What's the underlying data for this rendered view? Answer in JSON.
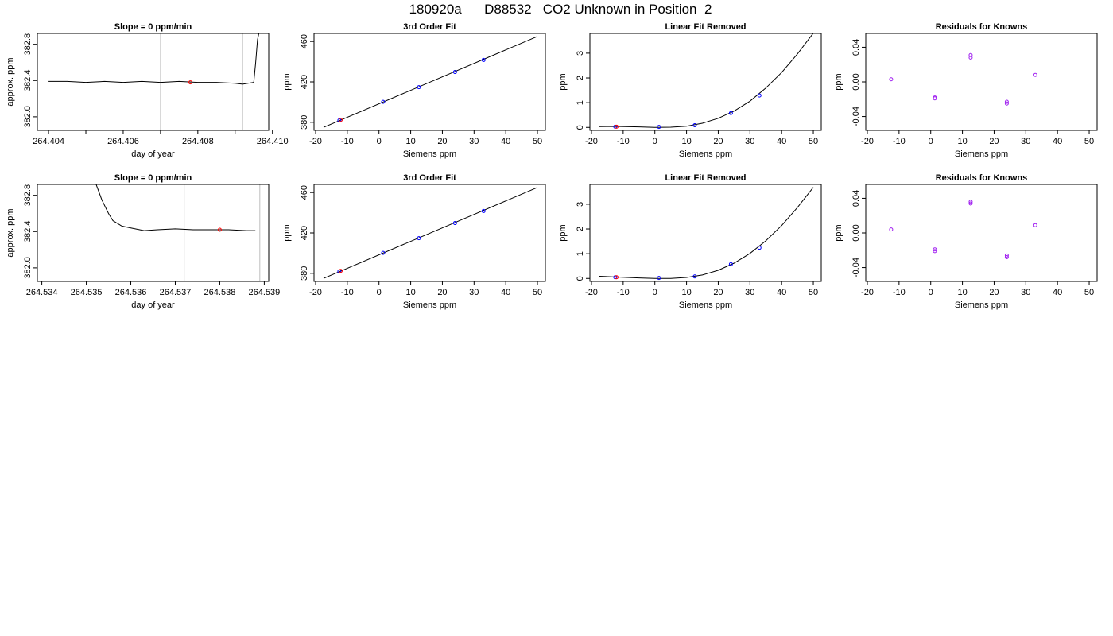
{
  "page": {
    "title": "180920a      D88532   CO2 Unknown in Position  2"
  },
  "colors": {
    "trace": "#000000",
    "guide": "#bebebe",
    "point_known": "#0000ff",
    "point_unknown": "#ff0000",
    "residual": "#a020f0"
  },
  "chart_data": [
    {
      "id": "r1-time",
      "type": "line",
      "title": "Slope =  0  ppm/min",
      "xlabel": "day of year",
      "ylabel": "approx. ppm",
      "xlim": [
        264.4037,
        264.4099
      ],
      "ylim": [
        381.85,
        382.92
      ],
      "xticks": [
        264.404,
        264.406,
        264.408,
        264.41
      ],
      "xtick_labels": [
        "264.404",
        "264.406",
        "264.408",
        "264.410"
      ],
      "xminor_ticks": [
        264.405,
        264.407,
        264.409
      ],
      "yticks": [
        382.0,
        382.4,
        382.8
      ],
      "ytick_labels": [
        "382.0",
        "382.4",
        "382.8"
      ],
      "vlines": [
        264.407,
        264.4092
      ],
      "series": [
        {
          "x": [
            264.404,
            264.4045,
            264.405,
            264.4055,
            264.406,
            264.4065,
            264.407,
            264.4075,
            264.408,
            264.4085,
            264.409,
            264.4092,
            264.4095,
            264.40955,
            264.4096,
            264.40965
          ],
          "y": [
            382.39,
            382.39,
            382.38,
            382.39,
            382.38,
            382.39,
            382.38,
            382.39,
            382.38,
            382.38,
            382.37,
            382.36,
            382.38,
            382.6,
            382.85,
            382.95
          ]
        }
      ],
      "points": [
        {
          "x": 264.4078,
          "y": 382.38,
          "color": "#ff0000"
        }
      ]
    },
    {
      "id": "r1-fit",
      "type": "line",
      "title": "3rd Order Fit",
      "xlabel": "Siemens ppm",
      "ylabel": "ppm",
      "xlim": [
        -20.5,
        52.5
      ],
      "ylim": [
        372,
        468
      ],
      "xticks": [
        -20,
        -10,
        0,
        10,
        20,
        30,
        40,
        50
      ],
      "xtick_labels": [
        "-20",
        "-10",
        "0",
        "10",
        "20",
        "30",
        "40",
        "50"
      ],
      "yticks": [
        380,
        420,
        460
      ],
      "ytick_labels": [
        "380",
        "420",
        "460"
      ],
      "series": [
        {
          "x": [
            -17.5,
            50
          ],
          "y": [
            375,
            465
          ]
        }
      ],
      "points": [
        {
          "x": -12.5,
          "y": 381.9,
          "color": "#0000ff"
        },
        {
          "x": -12.1,
          "y": 382.3,
          "color": "#ff0000"
        },
        {
          "x": 1.3,
          "y": 400.2,
          "color": "#0000ff"
        },
        {
          "x": 12.6,
          "y": 414.8,
          "color": "#0000ff"
        },
        {
          "x": 24.0,
          "y": 429.8,
          "color": "#0000ff"
        },
        {
          "x": 33.0,
          "y": 441.7,
          "color": "#0000ff"
        }
      ]
    },
    {
      "id": "r1-linear",
      "type": "line",
      "title": "Linear Fit Removed",
      "xlabel": "Siemens ppm",
      "ylabel": "ppm",
      "xlim": [
        -20.5,
        52.5
      ],
      "ylim": [
        -0.12,
        3.8
      ],
      "xticks": [
        -20,
        -10,
        0,
        10,
        20,
        30,
        40,
        50
      ],
      "xtick_labels": [
        "-20",
        "-10",
        "0",
        "10",
        "20",
        "30",
        "40",
        "50"
      ],
      "yticks": [
        0,
        1,
        2,
        3
      ],
      "ytick_labels": [
        "0",
        "1",
        "2",
        "3"
      ],
      "series": [
        {
          "x": [
            -17.5,
            -12.5,
            -5,
            0,
            5,
            10,
            15,
            20,
            25,
            30,
            35,
            40,
            45,
            50
          ],
          "y": [
            0.03,
            0.04,
            0.02,
            0.0,
            0.01,
            0.05,
            0.17,
            0.37,
            0.66,
            1.06,
            1.59,
            2.22,
            2.97,
            3.81
          ]
        }
      ],
      "points": [
        {
          "x": -12.5,
          "y": 0.03,
          "color": "#0000ff"
        },
        {
          "x": -12.1,
          "y": 0.03,
          "color": "#ff0000"
        },
        {
          "x": 1.3,
          "y": 0.02,
          "color": "#0000ff"
        },
        {
          "x": 12.6,
          "y": 0.09,
          "color": "#0000ff"
        },
        {
          "x": 24.0,
          "y": 0.58,
          "color": "#0000ff"
        },
        {
          "x": 33.0,
          "y": 1.29,
          "color": "#0000ff"
        }
      ]
    },
    {
      "id": "r1-resid",
      "type": "scatter",
      "title": "Residuals for Knowns",
      "xlabel": "Siemens ppm",
      "ylabel": "ppm",
      "xlim": [
        -20.5,
        52.5
      ],
      "ylim": [
        -0.056,
        0.056
      ],
      "xticks": [
        -20,
        -10,
        0,
        10,
        20,
        30,
        40,
        50
      ],
      "xtick_labels": [
        "-20",
        "-10",
        "0",
        "10",
        "20",
        "30",
        "40",
        "50"
      ],
      "yticks": [
        -0.04,
        0.0,
        0.04
      ],
      "ytick_labels": [
        "-0.04",
        "0.00",
        "0.04"
      ],
      "points": [
        {
          "x": -12.5,
          "y": 0.003,
          "color": "#a020f0"
        },
        {
          "x": 1.3,
          "y": -0.018,
          "color": "#a020f0"
        },
        {
          "x": 1.3,
          "y": -0.019,
          "color": "#a020f0"
        },
        {
          "x": 12.6,
          "y": 0.031,
          "color": "#a020f0"
        },
        {
          "x": 12.6,
          "y": 0.028,
          "color": "#a020f0"
        },
        {
          "x": 24.0,
          "y": -0.023,
          "color": "#a020f0"
        },
        {
          "x": 24.0,
          "y": -0.025,
          "color": "#a020f0"
        },
        {
          "x": 33.0,
          "y": 0.008,
          "color": "#a020f0"
        }
      ]
    },
    {
      "id": "r2-time",
      "type": "line",
      "title": "Slope =  0  ppm/min",
      "xlabel": "day of year",
      "ylabel": "approx. ppm",
      "xlim": [
        264.5339,
        264.5391
      ],
      "ylim": [
        381.85,
        382.92
      ],
      "xticks": [
        264.534,
        264.535,
        264.536,
        264.537,
        264.538,
        264.539
      ],
      "xtick_labels": [
        "264.534",
        "264.535",
        "264.536",
        "264.537",
        "264.538",
        "264.539"
      ],
      "yticks": [
        382.0,
        382.4,
        382.8
      ],
      "ytick_labels": [
        "382.0",
        "382.4",
        "382.8"
      ],
      "vlines": [
        264.5372,
        264.5389
      ],
      "series": [
        {
          "x": [
            264.5352,
            264.53535,
            264.5355,
            264.5356,
            264.5358,
            264.536,
            264.5363,
            264.5366,
            264.537,
            264.5374,
            264.5378,
            264.5382,
            264.5386,
            264.5388
          ],
          "y": [
            382.95,
            382.75,
            382.6,
            382.52,
            382.46,
            382.44,
            382.41,
            382.42,
            382.43,
            382.42,
            382.42,
            382.42,
            382.41,
            382.41
          ]
        }
      ],
      "points": [
        {
          "x": 264.538,
          "y": 382.42,
          "color": "#ff0000"
        }
      ]
    },
    {
      "id": "r2-fit",
      "type": "line",
      "title": "3rd Order Fit",
      "xlabel": "Siemens ppm",
      "ylabel": "ppm",
      "xlim": [
        -20.5,
        52.5
      ],
      "ylim": [
        372,
        468
      ],
      "xticks": [
        -20,
        -10,
        0,
        10,
        20,
        30,
        40,
        50
      ],
      "xtick_labels": [
        "-20",
        "-10",
        "0",
        "10",
        "20",
        "30",
        "40",
        "50"
      ],
      "yticks": [
        380,
        420,
        460
      ],
      "ytick_labels": [
        "380",
        "420",
        "460"
      ],
      "series": [
        {
          "x": [
            -17.5,
            50
          ],
          "y": [
            375,
            465
          ]
        }
      ],
      "points": [
        {
          "x": -12.5,
          "y": 381.9,
          "color": "#0000ff"
        },
        {
          "x": -12.1,
          "y": 382.4,
          "color": "#ff0000"
        },
        {
          "x": 1.3,
          "y": 400.2,
          "color": "#0000ff"
        },
        {
          "x": 12.6,
          "y": 414.8,
          "color": "#0000ff"
        },
        {
          "x": 24.0,
          "y": 429.8,
          "color": "#0000ff"
        },
        {
          "x": 33.0,
          "y": 441.7,
          "color": "#0000ff"
        }
      ]
    },
    {
      "id": "r2-linear",
      "type": "line",
      "title": "Linear Fit Removed",
      "xlabel": "Siemens ppm",
      "ylabel": "ppm",
      "xlim": [
        -20.5,
        52.5
      ],
      "ylim": [
        -0.12,
        3.8
      ],
      "xticks": [
        -20,
        -10,
        0,
        10,
        20,
        30,
        40,
        50
      ],
      "xtick_labels": [
        "-20",
        "-10",
        "0",
        "10",
        "20",
        "30",
        "40",
        "50"
      ],
      "yticks": [
        0,
        1,
        2,
        3
      ],
      "ytick_labels": [
        "0",
        "1",
        "2",
        "3"
      ],
      "series": [
        {
          "x": [
            -17.5,
            -12.5,
            -5,
            0,
            5,
            10,
            15,
            20,
            25,
            30,
            35,
            40,
            45,
            50
          ],
          "y": [
            0.09,
            0.06,
            0.02,
            0.0,
            0.0,
            0.04,
            0.14,
            0.33,
            0.62,
            1.01,
            1.52,
            2.14,
            2.87,
            3.68
          ]
        }
      ],
      "points": [
        {
          "x": -12.5,
          "y": 0.05,
          "color": "#0000ff"
        },
        {
          "x": -12.1,
          "y": 0.05,
          "color": "#ff0000"
        },
        {
          "x": 1.3,
          "y": 0.02,
          "color": "#0000ff"
        },
        {
          "x": 12.6,
          "y": 0.08,
          "color": "#0000ff"
        },
        {
          "x": 24.0,
          "y": 0.58,
          "color": "#0000ff"
        },
        {
          "x": 33.0,
          "y": 1.24,
          "color": "#0000ff"
        }
      ]
    },
    {
      "id": "r2-resid",
      "type": "scatter",
      "title": "Residuals for Knowns",
      "xlabel": "Siemens ppm",
      "ylabel": "ppm",
      "xlim": [
        -20.5,
        52.5
      ],
      "ylim": [
        -0.056,
        0.056
      ],
      "xticks": [
        -20,
        -10,
        0,
        10,
        20,
        30,
        40,
        50
      ],
      "xtick_labels": [
        "-20",
        "-10",
        "0",
        "10",
        "20",
        "30",
        "40",
        "50"
      ],
      "yticks": [
        -0.04,
        0.0,
        0.04
      ],
      "ytick_labels": [
        "-0.04",
        "0.00",
        "0.04"
      ],
      "points": [
        {
          "x": -12.5,
          "y": 0.004,
          "color": "#a020f0"
        },
        {
          "x": 1.3,
          "y": -0.019,
          "color": "#a020f0"
        },
        {
          "x": 1.3,
          "y": -0.021,
          "color": "#a020f0"
        },
        {
          "x": 12.6,
          "y": 0.036,
          "color": "#a020f0"
        },
        {
          "x": 12.6,
          "y": 0.034,
          "color": "#a020f0"
        },
        {
          "x": 24.0,
          "y": -0.026,
          "color": "#a020f0"
        },
        {
          "x": 24.0,
          "y": -0.028,
          "color": "#a020f0"
        },
        {
          "x": 33.0,
          "y": 0.009,
          "color": "#a020f0"
        }
      ]
    }
  ]
}
